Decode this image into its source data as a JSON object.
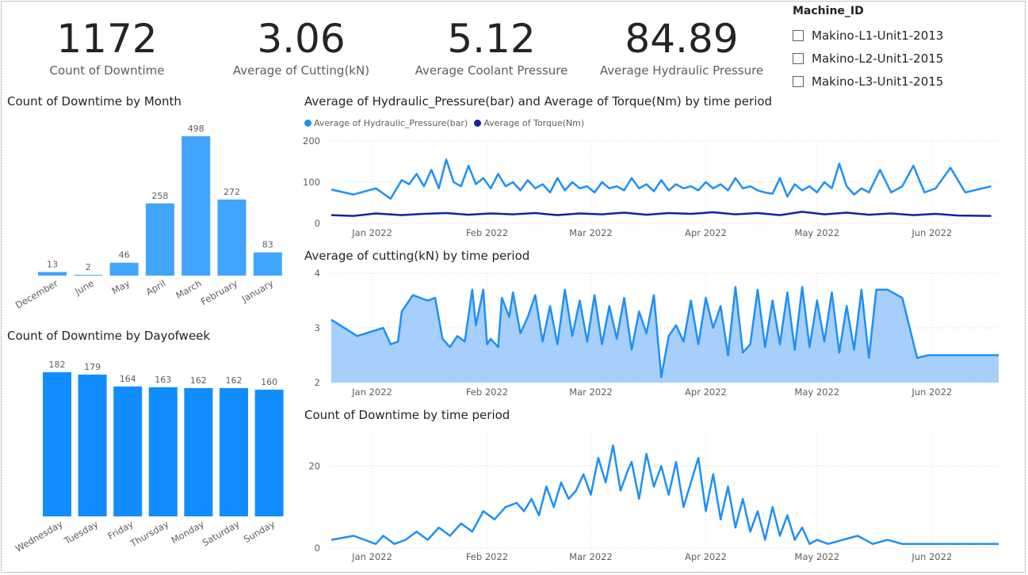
{
  "kpis": [
    {
      "value": "1172",
      "label": "Count of Downtime"
    },
    {
      "value": "3.06",
      "label": "Average of Cutting(kN)"
    },
    {
      "value": "5.12",
      "label": "Average Coolant Pressure"
    },
    {
      "value": "84.89",
      "label": "Average Hydraulic Pressure"
    }
  ],
  "slicer": {
    "title": "Machine_ID",
    "items": [
      "Makino-L1-Unit1-2013",
      "Makino-L2-Unit1-2015",
      "Makino-L3-Unit1-2015"
    ]
  },
  "colors": {
    "bar_month": "#41a4ff",
    "bar_day": "#118dff",
    "hydraulic": "#1e90f5",
    "torque": "#12239e",
    "cutting_line": "#1e90f5",
    "cutting_fill": "#a6cffb",
    "downtime_line": "#1e90f5"
  },
  "chart_data": [
    {
      "id": "month",
      "type": "bar",
      "title": "Count of Downtime by Month",
      "categories": [
        "December",
        "June",
        "May",
        "April",
        "March",
        "February",
        "January"
      ],
      "values": [
        13,
        2,
        46,
        258,
        498,
        272,
        83
      ],
      "ylim": [
        0,
        498
      ]
    },
    {
      "id": "day",
      "type": "bar",
      "title": "Count of Downtime by Dayofweek",
      "categories": [
        "Wednesday",
        "Tuesday",
        "Friday",
        "Thursday",
        "Monday",
        "Saturday",
        "Sunday"
      ],
      "values": [
        182,
        179,
        164,
        163,
        162,
        162,
        160
      ],
      "ylim": [
        0,
        182
      ]
    },
    {
      "id": "hydtorque",
      "type": "line",
      "title": "Average of Hydraulic_Pressure(bar) and Average of Torque(Nm) by time period",
      "x_range": [
        "2021-12-21",
        "2022-06-19"
      ],
      "x_ticks": [
        {
          "date": "2022-01-01",
          "label": "Jan 2022"
        },
        {
          "date": "2022-02-01",
          "label": "Feb 2022"
        },
        {
          "date": "2022-03-01",
          "label": "Mar 2022"
        },
        {
          "date": "2022-04-01",
          "label": "Apr 2022"
        },
        {
          "date": "2022-05-01",
          "label": "May 2022"
        },
        {
          "date": "2022-06-01",
          "label": "Jun 2022"
        }
      ],
      "ylim": [
        0,
        200
      ],
      "y_ticks": [
        0,
        100,
        200
      ],
      "legend_position": "top-left",
      "series": [
        {
          "name": "Average of Hydraulic_Pressure(bar)",
          "x": [
            "2021-12-21",
            "2021-12-27",
            "2022-01-02",
            "2022-01-06",
            "2022-01-09",
            "2022-01-11",
            "2022-01-13",
            "2022-01-15",
            "2022-01-17",
            "2022-01-19",
            "2022-01-21",
            "2022-01-23",
            "2022-01-25",
            "2022-01-27",
            "2022-01-29",
            "2022-01-31",
            "2022-02-02",
            "2022-02-04",
            "2022-02-06",
            "2022-02-08",
            "2022-02-10",
            "2022-02-12",
            "2022-02-14",
            "2022-02-16",
            "2022-02-18",
            "2022-02-20",
            "2022-02-22",
            "2022-02-24",
            "2022-02-26",
            "2022-02-28",
            "2022-03-02",
            "2022-03-04",
            "2022-03-06",
            "2022-03-08",
            "2022-03-10",
            "2022-03-12",
            "2022-03-14",
            "2022-03-16",
            "2022-03-18",
            "2022-03-20",
            "2022-03-22",
            "2022-03-24",
            "2022-03-26",
            "2022-03-28",
            "2022-03-30",
            "2022-04-01",
            "2022-04-03",
            "2022-04-05",
            "2022-04-07",
            "2022-04-09",
            "2022-04-11",
            "2022-04-13",
            "2022-04-15",
            "2022-04-17",
            "2022-04-19",
            "2022-04-21",
            "2022-04-23",
            "2022-04-25",
            "2022-04-27",
            "2022-04-29",
            "2022-05-01",
            "2022-05-03",
            "2022-05-05",
            "2022-05-07",
            "2022-05-09",
            "2022-05-11",
            "2022-05-13",
            "2022-05-15",
            "2022-05-18",
            "2022-05-21",
            "2022-05-24",
            "2022-05-27",
            "2022-05-30",
            "2022-06-02",
            "2022-06-06",
            "2022-06-10",
            "2022-06-17"
          ],
          "values": [
            82,
            70,
            85,
            60,
            105,
            95,
            120,
            90,
            130,
            85,
            155,
            100,
            90,
            140,
            95,
            110,
            85,
            120,
            90,
            100,
            80,
            105,
            85,
            95,
            75,
            110,
            80,
            100,
            85,
            90,
            75,
            100,
            85,
            90,
            80,
            110,
            85,
            95,
            78,
            105,
            80,
            95,
            85,
            90,
            80,
            100,
            85,
            95,
            80,
            110,
            85,
            90,
            80,
            75,
            72,
            110,
            65,
            95,
            80,
            90,
            75,
            100,
            85,
            145,
            90,
            70,
            85,
            75,
            130,
            75,
            90,
            140,
            75,
            85,
            135,
            75,
            90
          ]
        },
        {
          "name": "Average of Torque(Nm)",
          "x": [
            "2021-12-21",
            "2021-12-27",
            "2022-01-02",
            "2022-01-09",
            "2022-01-15",
            "2022-01-21",
            "2022-01-27",
            "2022-02-02",
            "2022-02-08",
            "2022-02-14",
            "2022-02-20",
            "2022-02-26",
            "2022-03-04",
            "2022-03-10",
            "2022-03-16",
            "2022-03-22",
            "2022-03-28",
            "2022-04-03",
            "2022-04-09",
            "2022-04-15",
            "2022-04-21",
            "2022-04-27",
            "2022-05-03",
            "2022-05-09",
            "2022-05-15",
            "2022-05-21",
            "2022-05-27",
            "2022-06-02",
            "2022-06-08",
            "2022-06-17"
          ],
          "values": [
            20,
            18,
            24,
            20,
            23,
            25,
            21,
            24,
            22,
            25,
            20,
            24,
            22,
            26,
            21,
            25,
            23,
            27,
            22,
            25,
            20,
            28,
            22,
            26,
            21,
            24,
            20,
            23,
            19,
            18
          ]
        }
      ]
    },
    {
      "id": "cutting",
      "type": "area",
      "title": "Average of cutting(kN) by time period",
      "x_range": [
        "2021-12-21",
        "2022-06-19"
      ],
      "x_ticks": [
        {
          "date": "2022-01-01",
          "label": "Jan 2022"
        },
        {
          "date": "2022-02-01",
          "label": "Feb 2022"
        },
        {
          "date": "2022-03-01",
          "label": "Mar 2022"
        },
        {
          "date": "2022-04-01",
          "label": "Apr 2022"
        },
        {
          "date": "2022-05-01",
          "label": "May 2022"
        },
        {
          "date": "2022-06-01",
          "label": "Jun 2022"
        }
      ],
      "ylim": [
        2,
        4
      ],
      "y_ticks": [
        2,
        3,
        4
      ],
      "series": [
        {
          "x": [
            "2021-12-21",
            "2021-12-28",
            "2022-01-04",
            "2022-01-06",
            "2022-01-08",
            "2022-01-09",
            "2022-01-12",
            "2022-01-16",
            "2022-01-18",
            "2022-01-20",
            "2022-01-22",
            "2022-01-24",
            "2022-01-26",
            "2022-01-28",
            "2022-01-29",
            "2022-01-31",
            "2022-02-01",
            "2022-02-02",
            "2022-02-04",
            "2022-02-05",
            "2022-02-07",
            "2022-02-08",
            "2022-02-10",
            "2022-02-12",
            "2022-02-14",
            "2022-02-16",
            "2022-02-18",
            "2022-02-20",
            "2022-02-22",
            "2022-02-24",
            "2022-02-26",
            "2022-02-28",
            "2022-03-02",
            "2022-03-04",
            "2022-03-06",
            "2022-03-08",
            "2022-03-10",
            "2022-03-12",
            "2022-03-14",
            "2022-03-16",
            "2022-03-18",
            "2022-03-20",
            "2022-03-22",
            "2022-03-24",
            "2022-03-26",
            "2022-03-28",
            "2022-03-30",
            "2022-04-01",
            "2022-04-03",
            "2022-04-05",
            "2022-04-07",
            "2022-04-09",
            "2022-04-11",
            "2022-04-13",
            "2022-04-15",
            "2022-04-17",
            "2022-04-19",
            "2022-04-21",
            "2022-04-23",
            "2022-04-25",
            "2022-04-27",
            "2022-04-29",
            "2022-05-01",
            "2022-05-03",
            "2022-05-05",
            "2022-05-07",
            "2022-05-09",
            "2022-05-11",
            "2022-05-13",
            "2022-05-15",
            "2022-05-17",
            "2022-05-20",
            "2022-05-24",
            "2022-05-28",
            "2022-05-31",
            "2022-06-04",
            "2022-06-19"
          ],
          "values": [
            3.15,
            2.85,
            3.0,
            2.7,
            2.75,
            3.3,
            3.6,
            3.5,
            3.55,
            2.8,
            2.65,
            2.85,
            2.75,
            3.7,
            3.05,
            3.7,
            2.7,
            2.8,
            2.65,
            3.55,
            3.2,
            3.65,
            2.9,
            3.2,
            3.6,
            2.75,
            3.4,
            2.7,
            3.7,
            2.85,
            3.5,
            2.75,
            3.6,
            2.7,
            3.4,
            2.8,
            3.55,
            2.6,
            3.3,
            2.9,
            3.6,
            2.1,
            2.85,
            3.05,
            2.75,
            3.5,
            2.7,
            3.55,
            3.0,
            3.4,
            2.5,
            3.75,
            2.55,
            2.7,
            3.7,
            2.65,
            3.5,
            2.7,
            3.65,
            2.6,
            3.75,
            2.65,
            3.5,
            2.75,
            3.65,
            2.55,
            3.4,
            2.6,
            3.7,
            2.45,
            3.7,
            3.7,
            3.55,
            2.45,
            2.5,
            2.5,
            2.5
          ]
        }
      ]
    },
    {
      "id": "downtime",
      "type": "line",
      "title": "Count of Downtime by time period",
      "x_range": [
        "2021-12-21",
        "2022-06-19"
      ],
      "x_ticks": [
        {
          "date": "2022-01-01",
          "label": "Jan 2022"
        },
        {
          "date": "2022-02-01",
          "label": "Feb 2022"
        },
        {
          "date": "2022-03-01",
          "label": "Mar 2022"
        },
        {
          "date": "2022-04-01",
          "label": "Apr 2022"
        },
        {
          "date": "2022-05-01",
          "label": "May 2022"
        },
        {
          "date": "2022-06-01",
          "label": "Jun 2022"
        }
      ],
      "ylim": [
        0,
        28
      ],
      "y_ticks": [
        0,
        20
      ],
      "series": [
        {
          "x": [
            "2021-12-21",
            "2021-12-27",
            "2022-01-02",
            "2022-01-04",
            "2022-01-07",
            "2022-01-10",
            "2022-01-13",
            "2022-01-16",
            "2022-01-19",
            "2022-01-22",
            "2022-01-25",
            "2022-01-28",
            "2022-01-31",
            "2022-02-03",
            "2022-02-06",
            "2022-02-09",
            "2022-02-11",
            "2022-02-13",
            "2022-02-15",
            "2022-02-17",
            "2022-02-19",
            "2022-02-21",
            "2022-02-23",
            "2022-02-25",
            "2022-02-27",
            "2022-03-01",
            "2022-03-03",
            "2022-03-05",
            "2022-03-07",
            "2022-03-09",
            "2022-03-11",
            "2022-03-12",
            "2022-03-14",
            "2022-03-16",
            "2022-03-18",
            "2022-03-20",
            "2022-03-22",
            "2022-03-24",
            "2022-03-26",
            "2022-03-28",
            "2022-03-30",
            "2022-04-01",
            "2022-04-03",
            "2022-04-05",
            "2022-04-07",
            "2022-04-09",
            "2022-04-11",
            "2022-04-13",
            "2022-04-15",
            "2022-04-17",
            "2022-04-19",
            "2022-04-21",
            "2022-04-23",
            "2022-04-25",
            "2022-04-27",
            "2022-04-29",
            "2022-05-01",
            "2022-05-04",
            "2022-05-08",
            "2022-05-12",
            "2022-05-16",
            "2022-05-20",
            "2022-05-24",
            "2022-05-28",
            "2022-06-01",
            "2022-06-06",
            "2022-06-19"
          ],
          "values": [
            2,
            3,
            1,
            3,
            1,
            2,
            4,
            2,
            5,
            3,
            6,
            4,
            9,
            7,
            10,
            11,
            9,
            12,
            8,
            15,
            10,
            16,
            12,
            14,
            18,
            13,
            22,
            16,
            25,
            14,
            19,
            21,
            12,
            23,
            15,
            20,
            13,
            21,
            10,
            16,
            22,
            9,
            18,
            7,
            15,
            5,
            12,
            4,
            9,
            2,
            10,
            3,
            8,
            2,
            5,
            1,
            2,
            1,
            2,
            3,
            1,
            2,
            1,
            1,
            1,
            1,
            1
          ]
        }
      ]
    }
  ]
}
